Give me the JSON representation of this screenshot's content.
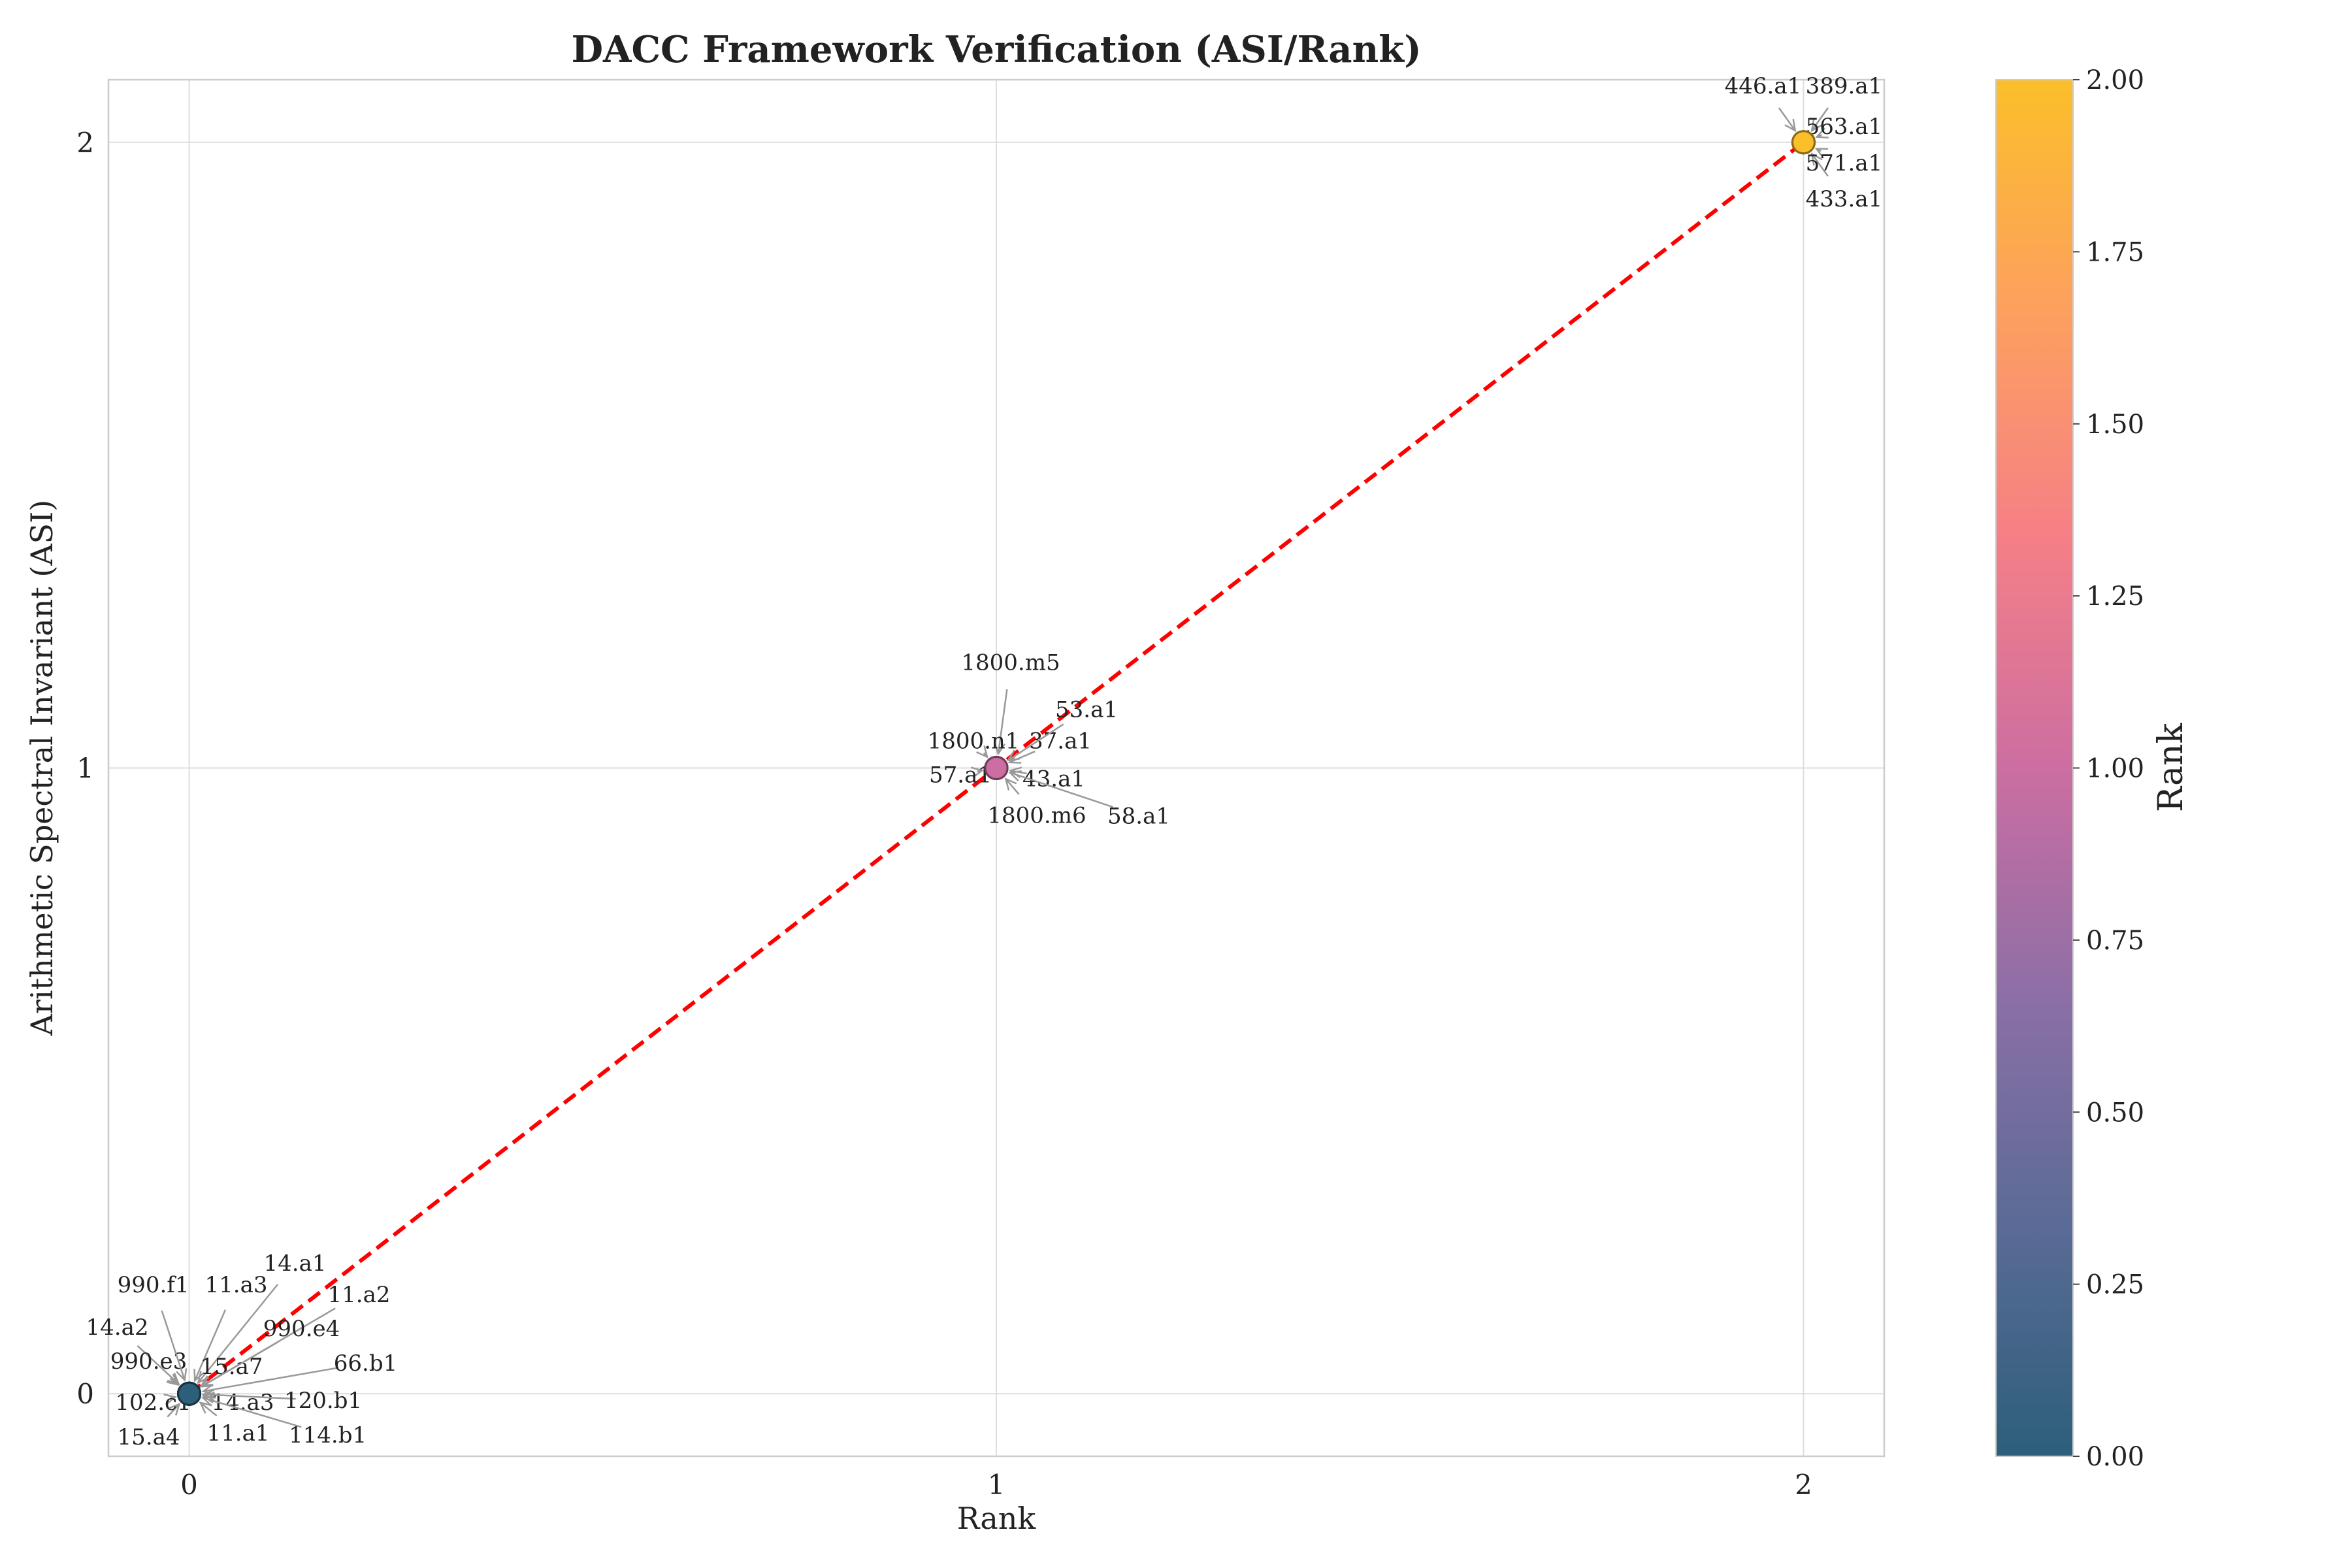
{
  "chart_data": {
    "type": "scatter",
    "title": "DACC Framework Verification (ASI/Rank)",
    "xlabel": "Rank",
    "ylabel": "Arithmetic Spectral Invariant (ASI)",
    "xlim": [
      -0.1,
      2.1
    ],
    "ylim": [
      -0.1,
      2.1
    ],
    "xticks": [
      "0",
      "1",
      "2"
    ],
    "yticks": [
      "0",
      "1",
      "2"
    ],
    "grid": true,
    "reference_line": {
      "from": [
        0,
        0
      ],
      "to": [
        2,
        2
      ],
      "color": "#ff0000",
      "style": "dashed"
    },
    "points": [
      {
        "label": "11.a1",
        "x": 0,
        "y": 0
      },
      {
        "label": "11.a2",
        "x": 0,
        "y": 0
      },
      {
        "label": "11.a3",
        "x": 0,
        "y": 0
      },
      {
        "label": "14.a1",
        "x": 0,
        "y": 0
      },
      {
        "label": "14.a2",
        "x": 0,
        "y": 0
      },
      {
        "label": "14.a3",
        "x": 0,
        "y": 0
      },
      {
        "label": "15.a4",
        "x": 0,
        "y": 0
      },
      {
        "label": "15.a7",
        "x": 0,
        "y": 0
      },
      {
        "label": "66.b1",
        "x": 0,
        "y": 0
      },
      {
        "label": "102.c1",
        "x": 0,
        "y": 0
      },
      {
        "label": "114.b1",
        "x": 0,
        "y": 0
      },
      {
        "label": "120.b1",
        "x": 0,
        "y": 0
      },
      {
        "label": "990.e3",
        "x": 0,
        "y": 0
      },
      {
        "label": "990.e4",
        "x": 0,
        "y": 0
      },
      {
        "label": "990.f1",
        "x": 0,
        "y": 0
      },
      {
        "label": "37.a1",
        "x": 1,
        "y": 1
      },
      {
        "label": "43.a1",
        "x": 1,
        "y": 1
      },
      {
        "label": "53.a1",
        "x": 1,
        "y": 1
      },
      {
        "label": "57.a1",
        "x": 1,
        "y": 1
      },
      {
        "label": "58.a1",
        "x": 1,
        "y": 1
      },
      {
        "label": "1800.m5",
        "x": 1,
        "y": 1
      },
      {
        "label": "1800.m6",
        "x": 1,
        "y": 1
      },
      {
        "label": "1800.n1",
        "x": 1,
        "y": 1
      },
      {
        "label": "389.a1",
        "x": 2,
        "y": 2
      },
      {
        "label": "433.a1",
        "x": 2,
        "y": 2
      },
      {
        "label": "446.a1",
        "x": 2,
        "y": 2
      },
      {
        "label": "563.a1",
        "x": 2,
        "y": 2
      },
      {
        "label": "571.a1",
        "x": 2,
        "y": 2
      }
    ],
    "colorbar": {
      "label": "Rank",
      "range": [
        0,
        2
      ],
      "ticks": [
        "0.00",
        "0.25",
        "0.50",
        "0.75",
        "1.00",
        "1.25",
        "1.50",
        "1.75",
        "2.00"
      ],
      "colors": [
        "#2c5f7a",
        "#5a6b96",
        "#8c6fa6",
        "#cc6ea2",
        "#f57f87",
        "#fda05f",
        "#fbbf2a"
      ]
    }
  }
}
